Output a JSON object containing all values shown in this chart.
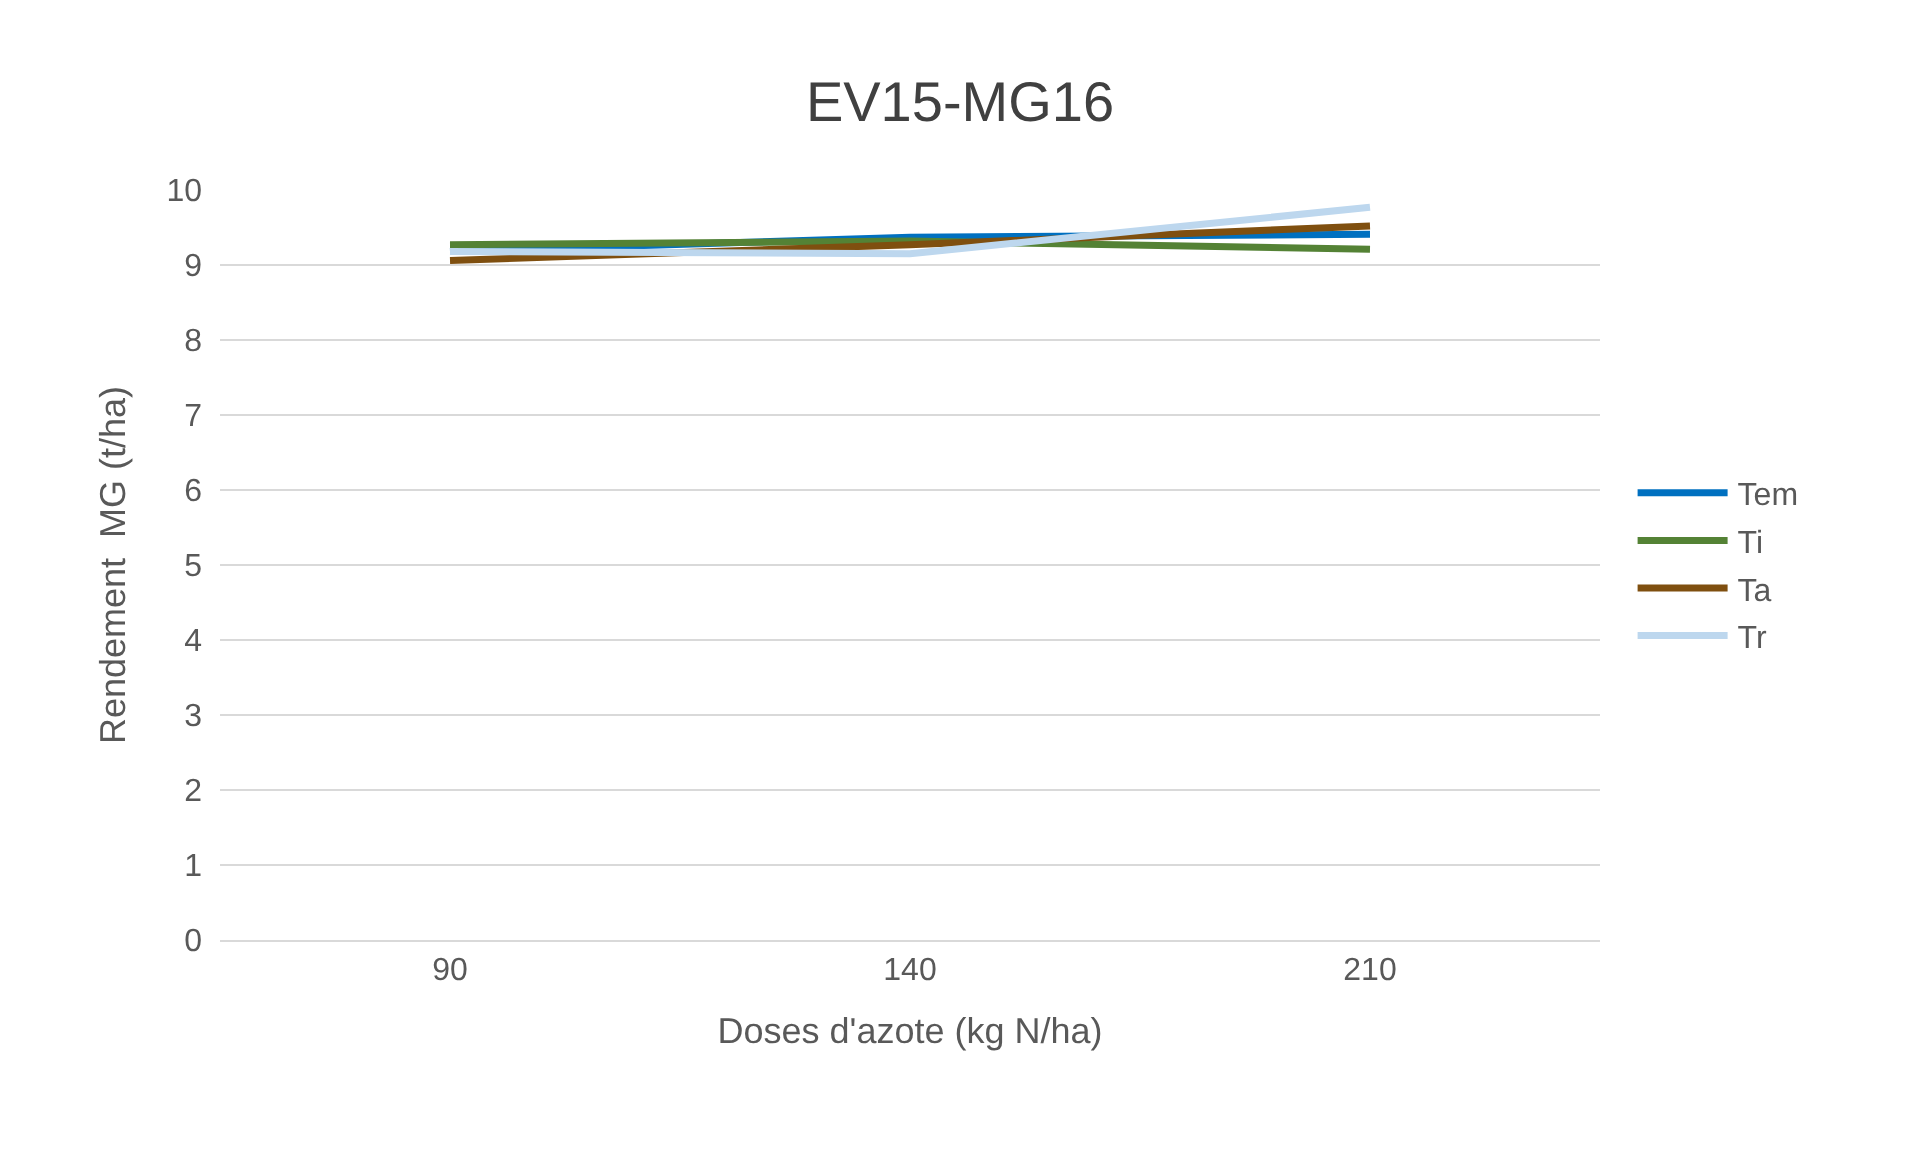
{
  "chart_data": {
    "type": "line",
    "title": "EV15-MG16",
    "xlabel": "Doses d'azote (kg N/ha)",
    "ylabel": "Rendement  MG (t/ha)",
    "categories": [
      "90",
      "140",
      "210"
    ],
    "series": [
      {
        "name": "Tem",
        "color": "#0070c0",
        "values": [
          9.18,
          9.37,
          9.41
        ]
      },
      {
        "name": "Ti",
        "color": "#548235",
        "values": [
          9.27,
          9.32,
          9.21
        ]
      },
      {
        "name": "Ta",
        "color": "#7f4f0f",
        "values": [
          9.06,
          9.27,
          9.52
        ]
      },
      {
        "name": "Tr",
        "color": "#bdd7ee",
        "values": [
          9.18,
          9.15,
          9.77
        ]
      }
    ],
    "ylim": [
      0,
      10
    ],
    "yticks": [
      0,
      1,
      2,
      3,
      4,
      5,
      6,
      7,
      8,
      9,
      10
    ],
    "grid": "y",
    "legend": "right",
    "marker": "none",
    "line_style": "solid"
  }
}
